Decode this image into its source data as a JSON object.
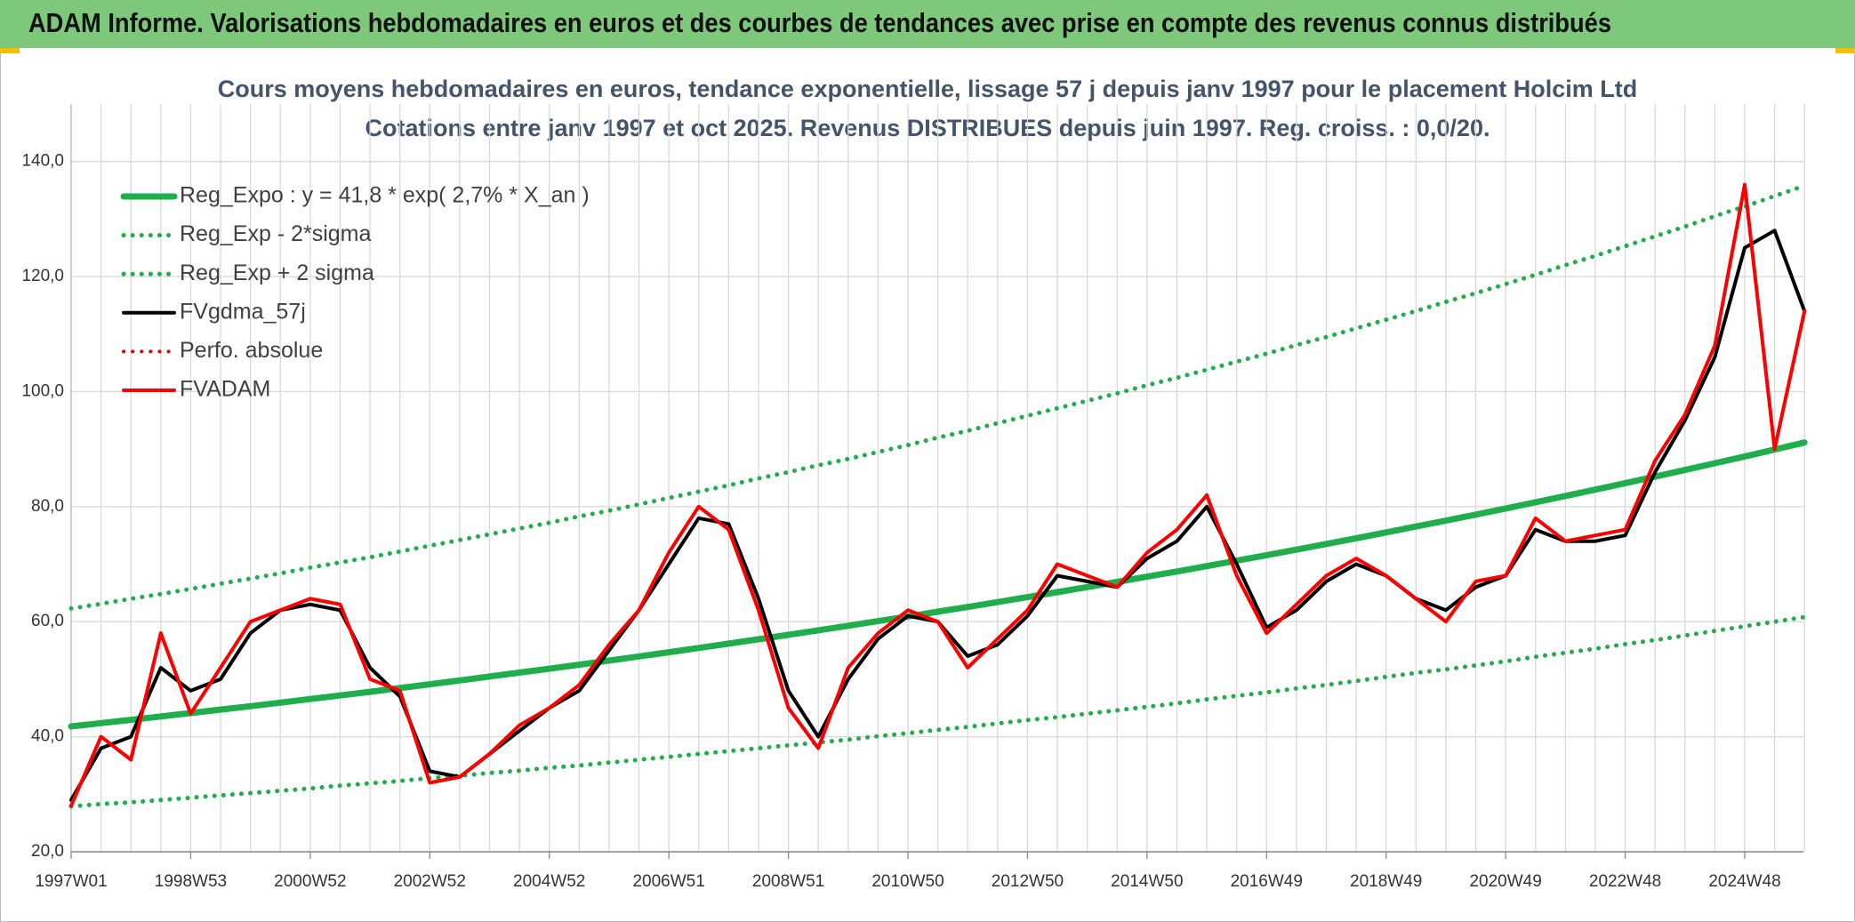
{
  "header": {
    "title": "ADAM Informe. Valorisations hebdomadaires en euros et des courbes de tendances avec prise en compte des revenus connus distribués"
  },
  "chart_data": {
    "type": "line",
    "title": "Cours moyens hebdomadaires en euros, tendance exponentielle, lissage 57 j depuis janv 1997 pour le placement Holcim Ltd",
    "subtitle": "Cotations entre janv 1997 et oct 2025. Revenus DISTRIBUES depuis juin 1997. Reg. croiss. : 0,0/20.",
    "categories": [
      "1997W01",
      null,
      null,
      null,
      "1998W53",
      null,
      null,
      null,
      "2000W52",
      null,
      null,
      null,
      "2002W52",
      null,
      null,
      null,
      "2004W52",
      null,
      null,
      null,
      "2006W51",
      null,
      null,
      null,
      "2008W51",
      null,
      null,
      null,
      "2010W50",
      null,
      null,
      null,
      "2012W50",
      null,
      null,
      null,
      "2014W50",
      null,
      null,
      null,
      "2016W49",
      null,
      null,
      null,
      "2018W49",
      null,
      null,
      null,
      "2020W49",
      null,
      null,
      null,
      "2022W48",
      null,
      null,
      null,
      "2024W48",
      null,
      null
    ],
    "ylim": [
      20,
      150
    ],
    "yticks": [
      {
        "value": 20,
        "label": "20,0"
      },
      {
        "value": 40,
        "label": "40,0"
      },
      {
        "value": 60,
        "label": "60,0"
      },
      {
        "value": 80,
        "label": "80,0"
      },
      {
        "value": 100,
        "label": "100,0"
      },
      {
        "value": 120,
        "label": "120,0"
      },
      {
        "value": 140,
        "label": "140,0"
      }
    ],
    "grid": true,
    "legend": "top-left",
    "series": [
      {
        "name": "Reg_Expo : y = 41,8 * exp( 2,7% *  X_an )",
        "color": "#1fae4b",
        "style": "solid",
        "values": [
          41.8,
          42.37,
          42.94,
          43.52,
          44.11,
          44.71,
          45.31,
          45.92,
          46.55,
          47.18,
          47.81,
          48.46,
          49.12,
          49.78,
          50.46,
          51.14,
          51.83,
          52.53,
          53.24,
          53.96,
          54.69,
          55.43,
          56.18,
          56.95,
          57.72,
          58.5,
          59.29,
          60.09,
          60.9,
          61.73,
          62.56,
          63.41,
          64.27,
          65.14,
          66.02,
          66.91,
          67.82,
          68.73,
          69.66,
          70.61,
          71.56,
          72.53,
          73.51,
          74.51,
          75.52,
          76.54,
          77.57,
          78.62,
          79.68,
          80.76,
          81.86,
          82.96,
          84.09,
          85.22,
          86.38,
          87.55,
          88.73,
          89.93,
          91.15
        ]
      },
      {
        "name": "Reg_Exp - 2*sigma",
        "color": "#1fae4b",
        "style": "dotted",
        "values": [
          27.9,
          28.3,
          28.6,
          29.0,
          29.4,
          29.8,
          30.2,
          30.6,
          31.0,
          31.5,
          31.9,
          32.3,
          32.8,
          33.2,
          33.7,
          34.1,
          34.6,
          35.0,
          35.5,
          36.0,
          36.5,
          37.0,
          37.5,
          38.0,
          38.5,
          39.0,
          39.5,
          40.1,
          40.6,
          41.2,
          41.7,
          42.3,
          42.9,
          43.4,
          44.0,
          44.6,
          45.2,
          45.8,
          46.5,
          47.1,
          47.7,
          48.4,
          49.0,
          49.7,
          50.4,
          51.1,
          51.7,
          52.4,
          53.1,
          53.9,
          54.6,
          55.3,
          56.1,
          56.8,
          57.6,
          58.4,
          59.2,
          60.0,
          60.8
        ]
      },
      {
        "name": "Reg_Exp + 2 sigma",
        "color": "#1fae4b",
        "style": "dotted",
        "values": [
          62.3,
          63.1,
          64.0,
          64.8,
          65.7,
          66.6,
          67.5,
          68.4,
          69.4,
          70.3,
          71.2,
          72.2,
          73.2,
          74.2,
          75.2,
          76.2,
          77.2,
          78.3,
          79.3,
          80.4,
          81.5,
          82.6,
          83.7,
          84.9,
          86.0,
          87.2,
          88.3,
          89.5,
          90.7,
          92.0,
          93.2,
          94.5,
          95.8,
          97.1,
          98.4,
          99.7,
          101.1,
          102.4,
          103.8,
          105.2,
          106.6,
          108.1,
          109.5,
          111.0,
          112.5,
          114.0,
          115.6,
          117.1,
          118.7,
          120.3,
          122.0,
          123.6,
          125.3,
          127.0,
          128.7,
          130.5,
          132.2,
          134.0,
          135.8
        ]
      },
      {
        "name": "FVgdma_57j",
        "color": "#000000",
        "style": "solid",
        "values": [
          29,
          38,
          40,
          52,
          48,
          50,
          58,
          62,
          63,
          62,
          52,
          47,
          34,
          33,
          37,
          41,
          45,
          48,
          55,
          62,
          70,
          78,
          77,
          64,
          48,
          40,
          50,
          57,
          61,
          60,
          54,
          56,
          61,
          68,
          67,
          66,
          71,
          74,
          80,
          70,
          59,
          62,
          67,
          70,
          68,
          64,
          62,
          66,
          68,
          76,
          74,
          74,
          75,
          86,
          95,
          106,
          125,
          128,
          114
        ]
      },
      {
        "name": "Perfo. absolue",
        "color": "#e00000",
        "style": "dotted",
        "values": [
          28,
          40,
          36,
          58,
          44,
          52,
          60,
          62,
          64,
          63,
          50,
          48,
          32,
          33,
          37,
          42,
          45,
          49,
          56,
          62,
          72,
          80,
          76,
          62,
          45,
          38,
          52,
          58,
          62,
          60,
          52,
          57,
          62,
          70,
          68,
          66,
          72,
          76,
          82,
          68,
          58,
          63,
          68,
          71,
          68,
          64,
          60,
          67,
          68,
          78,
          74,
          75,
          76,
          88,
          96,
          108,
          136,
          90,
          114
        ]
      },
      {
        "name": "FVADAM",
        "color": "#ff0000",
        "style": "solid",
        "values": [
          28,
          40,
          36,
          58,
          44,
          52,
          60,
          62,
          64,
          63,
          50,
          48,
          32,
          33,
          37,
          42,
          45,
          49,
          56,
          62,
          72,
          80,
          76,
          62,
          45,
          38,
          52,
          58,
          62,
          60,
          52,
          57,
          62,
          70,
          68,
          66,
          72,
          76,
          82,
          68,
          58,
          63,
          68,
          71,
          68,
          64,
          60,
          67,
          68,
          78,
          74,
          75,
          76,
          88,
          96,
          108,
          136,
          90,
          114
        ]
      }
    ]
  }
}
